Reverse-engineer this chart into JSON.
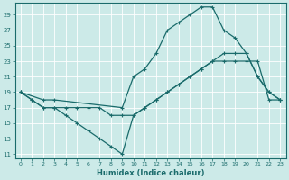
{
  "xlabel": "Humidex (Indice chaleur)",
  "bg_color": "#cceae8",
  "grid_color": "#aad4d0",
  "line_color": "#1a6b6b",
  "xlim": [
    -0.5,
    23.5
  ],
  "ylim": [
    10.5,
    30.5
  ],
  "xticks": [
    0,
    1,
    2,
    3,
    4,
    5,
    6,
    7,
    8,
    9,
    10,
    11,
    12,
    13,
    14,
    15,
    16,
    17,
    18,
    19,
    20,
    21,
    22,
    23
  ],
  "yticks": [
    11,
    13,
    15,
    17,
    19,
    21,
    23,
    25,
    27,
    29
  ],
  "line1_x": [
    0,
    1,
    2,
    3,
    4,
    5,
    6,
    7,
    8,
    9,
    10,
    11,
    12,
    13,
    14,
    15,
    16,
    17,
    18,
    19,
    20,
    21,
    22,
    23
  ],
  "line1_y": [
    19,
    18,
    17,
    17,
    16,
    15,
    14,
    13,
    12,
    11,
    16,
    17,
    18,
    19,
    20,
    21,
    22,
    23,
    23,
    23,
    23,
    23,
    18,
    18
  ],
  "line2_x": [
    0,
    1,
    2,
    3,
    4,
    5,
    6,
    7,
    8,
    9,
    10,
    11,
    12,
    13,
    14,
    15,
    16,
    17,
    18,
    19,
    20,
    21,
    22,
    23
  ],
  "line2_y": [
    19,
    18,
    17,
    17,
    17,
    17,
    17,
    17,
    16,
    16,
    16,
    17,
    18,
    19,
    20,
    21,
    22,
    23,
    24,
    24,
    24,
    21,
    19,
    18
  ],
  "line3_x": [
    0,
    2,
    3,
    9,
    10,
    11,
    12,
    13,
    14,
    15,
    16,
    17,
    18,
    19,
    20,
    21,
    22,
    23
  ],
  "line3_y": [
    19,
    18,
    18,
    17,
    21,
    22,
    24,
    27,
    28,
    29,
    30,
    30,
    27,
    26,
    24,
    21,
    19,
    18
  ]
}
